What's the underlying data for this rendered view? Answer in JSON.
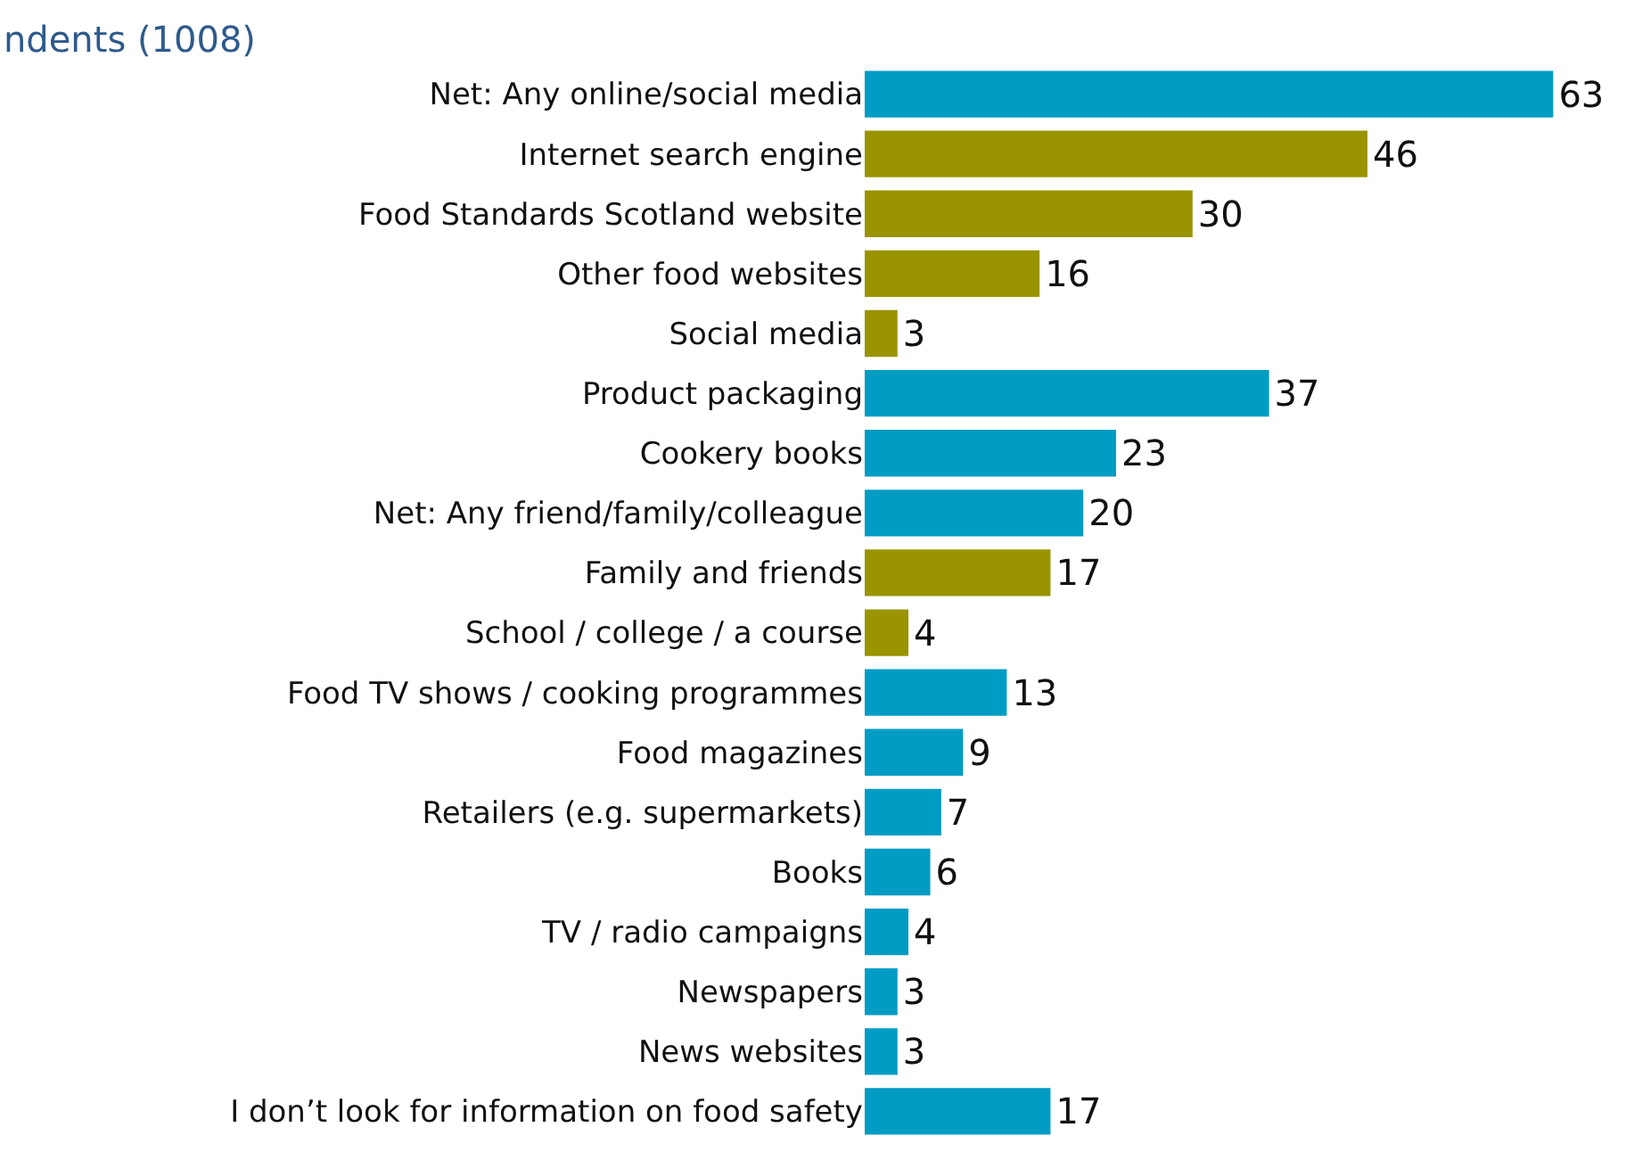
{
  "chart_data": {
    "type": "bar",
    "orientation": "horizontal",
    "title": "ndents (1008)",
    "categories": [
      "Net: Any online/social media",
      "Internet search engine",
      "Food Standards Scotland website",
      "Other food websites",
      "Social media",
      "Product packaging",
      "Cookery books",
      "Net: Any friend/family/colleague",
      "Family and friends",
      "School / college / a course",
      "Food TV shows / cooking programmes",
      "Food magazines",
      "Retailers (e.g. supermarkets)",
      "Books",
      "TV / radio campaigns",
      "Newspapers",
      "News websites",
      "I don’t look for information on food safety"
    ],
    "values": [
      63,
      46,
      30,
      16,
      3,
      37,
      23,
      20,
      17,
      4,
      13,
      9,
      7,
      6,
      4,
      3,
      3,
      17
    ],
    "colors": [
      "#009cc4",
      "#999400",
      "#999400",
      "#999400",
      "#999400",
      "#009cc4",
      "#009cc4",
      "#009cc4",
      "#999400",
      "#999400",
      "#009cc4",
      "#009cc4",
      "#009cc4",
      "#009cc4",
      "#009cc4",
      "#009cc4",
      "#009cc4",
      "#009cc4"
    ],
    "data_labels": true,
    "legend": false
  }
}
